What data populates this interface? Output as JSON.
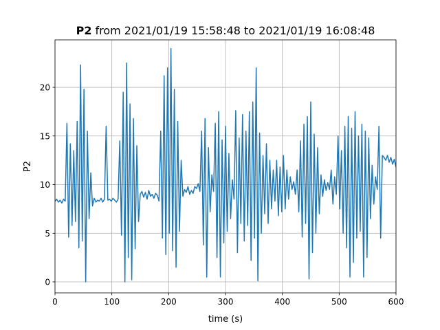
{
  "chart_data": {
    "type": "line",
    "title": {
      "bold": "P2",
      "text": "from 2021/01/19 15:58:48 to 2021/01/19 16:08:48"
    },
    "xlabel": "time (s)",
    "ylabel": "P2",
    "color": "#1f77b4",
    "grid": true,
    "xlim": [
      0,
      600
    ],
    "ylim": [
      -1.13,
      24.88
    ],
    "xticks": [
      0,
      100,
      200,
      300,
      400,
      500,
      600
    ],
    "yticks": [
      0,
      5,
      10,
      15,
      20
    ],
    "x": [
      0,
      3,
      6,
      9,
      12,
      15,
      18,
      21,
      24,
      27,
      30,
      33,
      36,
      39,
      42,
      45,
      48,
      51,
      54,
      57,
      60,
      63,
      66,
      69,
      72,
      75,
      78,
      81,
      84,
      87,
      90,
      93,
      96,
      99,
      102,
      105,
      108,
      111,
      114,
      117,
      120,
      123,
      126,
      129,
      132,
      135,
      138,
      141,
      144,
      147,
      150,
      153,
      156,
      159,
      162,
      165,
      168,
      171,
      174,
      177,
      180,
      183,
      186,
      189,
      192,
      195,
      198,
      201,
      204,
      207,
      210,
      213,
      216,
      219,
      222,
      225,
      228,
      231,
      234,
      237,
      240,
      243,
      246,
      249,
      252,
      255,
      258,
      261,
      264,
      267,
      270,
      273,
      276,
      279,
      282,
      285,
      288,
      291,
      294,
      297,
      300,
      303,
      306,
      309,
      312,
      315,
      318,
      321,
      324,
      327,
      330,
      333,
      336,
      339,
      342,
      345,
      348,
      351,
      354,
      357,
      360,
      363,
      366,
      369,
      372,
      375,
      378,
      381,
      384,
      387,
      390,
      393,
      396,
      399,
      402,
      405,
      408,
      411,
      414,
      417,
      420,
      423,
      426,
      429,
      432,
      435,
      438,
      441,
      444,
      447,
      450,
      453,
      456,
      459,
      462,
      465,
      468,
      471,
      474,
      477,
      480,
      483,
      486,
      489,
      492,
      495,
      498,
      501,
      504,
      507,
      510,
      513,
      516,
      519,
      522,
      525,
      528,
      531,
      534,
      537,
      540,
      543,
      546,
      549,
      552,
      555,
      558,
      561,
      564,
      567,
      570,
      573,
      576,
      579,
      582,
      585,
      588,
      591,
      594,
      597,
      600
    ],
    "values": [
      8.3,
      8.5,
      8.2,
      8.4,
      8.1,
      8.5,
      8.3,
      16.3,
      4.6,
      14.2,
      5.8,
      13.5,
      6.2,
      16.5,
      3.5,
      22.3,
      4.2,
      19.8,
      0.0,
      15.5,
      6.5,
      11.2,
      7.8,
      8.6,
      8.2,
      8.4,
      8.3,
      8.6,
      8.2,
      8.5,
      16.0,
      8.4,
      8.5,
      8.3,
      8.6,
      8.4,
      8.2,
      8.5,
      14.5,
      4.8,
      19.5,
      0.0,
      22.5,
      2.5,
      18.3,
      0.2,
      16.8,
      3.4,
      14.0,
      6.2,
      9.0,
      9.3,
      8.7,
      9.2,
      8.5,
      9.4,
      8.8,
      9.0,
      8.6,
      9.1,
      8.9,
      8.3,
      15.5,
      4.5,
      21.2,
      2.8,
      22.0,
      5.0,
      24.0,
      3.2,
      19.8,
      1.5,
      16.5,
      5.2,
      12.5,
      8.8,
      9.5,
      9.2,
      9.8,
      9.0,
      9.4,
      9.1,
      9.8,
      9.6,
      10.1,
      9.3,
      15.5,
      3.8,
      16.8,
      0.5,
      13.8,
      7.2,
      11.0,
      9.3,
      16.3,
      2.5,
      17.5,
      0.5,
      14.6,
      4.0,
      16.0,
      5.2,
      13.2,
      6.5,
      10.5,
      8.5,
      17.6,
      3.0,
      14.8,
      6.0,
      17.2,
      4.2,
      15.5,
      5.8,
      17.5,
      2.2,
      18.5,
      4.5,
      22.0,
      0.1,
      15.3,
      5.0,
      13.0,
      7.0,
      14.2,
      6.0,
      12.5,
      7.5,
      11.5,
      8.3,
      12.5,
      6.8,
      11.8,
      7.2,
      13.0,
      7.5,
      11.5,
      8.5,
      10.8,
      9.5,
      10.3,
      9.0,
      11.5,
      7.2,
      14.5,
      4.6,
      16.2,
      6.0,
      17.0,
      0.3,
      18.5,
      3.0,
      15.2,
      5.0,
      13.8,
      7.0,
      11.0,
      8.8,
      10.5,
      9.4,
      10.2,
      9.5,
      11.5,
      8.0,
      10.8,
      9.0,
      15.0,
      7.5,
      13.5,
      5.0,
      16.0,
      3.5,
      17.0,
      0.5,
      15.8,
      2.0,
      17.5,
      4.5,
      15.0,
      5.2,
      16.2,
      0.5,
      15.5,
      2.5,
      14.8,
      6.5,
      12.0,
      8.0,
      10.8,
      9.5,
      16.0,
      4.5,
      13.0,
      12.8,
      12.5,
      13.0,
      12.3,
      12.8,
      12.1,
      12.6,
      11.8
    ]
  }
}
